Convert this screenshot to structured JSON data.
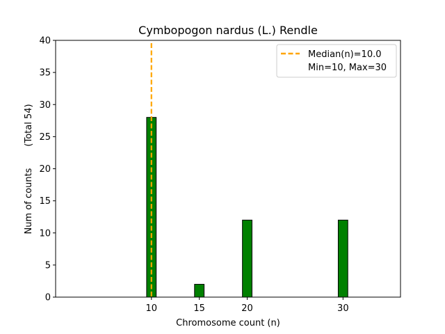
{
  "chart_data": {
    "type": "bar",
    "title": "Cymbopogon nardus (L.) Rendle",
    "xlabel": "Chromosome count (n)",
    "ylabel": "Num of counts",
    "ylabel_note": "(Total 54)",
    "x": [
      10,
      15,
      20,
      30
    ],
    "values": [
      28,
      2,
      12,
      12
    ],
    "xlim": [
      0,
      36
    ],
    "ylim": [
      0,
      40
    ],
    "xticks": [
      10,
      15,
      20,
      30
    ],
    "yticks": [
      0,
      5,
      10,
      15,
      20,
      25,
      30,
      35,
      40
    ],
    "bar_width": 1,
    "bar_color": "#008000",
    "bar_edge_color": "#000000",
    "grid": false,
    "median": {
      "value": 10,
      "label": "Median(n)=10.0",
      "color": "#FFA500",
      "style": "dashed"
    },
    "legend": {
      "position": "top-right",
      "entries": [
        "Median(n)=10.0",
        "Min=10, Max=30"
      ]
    }
  }
}
